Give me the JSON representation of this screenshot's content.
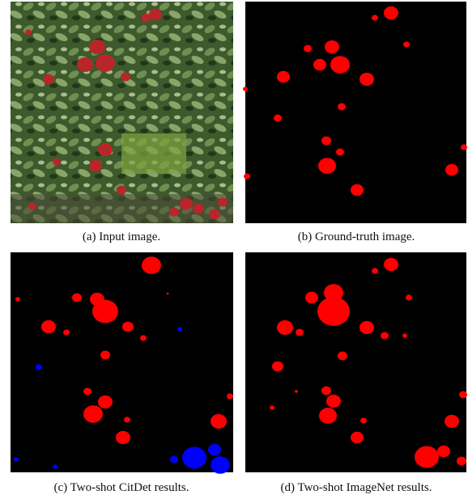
{
  "figure": {
    "subfigures": [
      {
        "caption": "(a) Input image."
      },
      {
        "caption": "(b) Ground-truth image."
      },
      {
        "caption": "(c) Two-shot CitDet results."
      },
      {
        "caption": "(d) Two-shot ImageNet results."
      }
    ]
  }
}
